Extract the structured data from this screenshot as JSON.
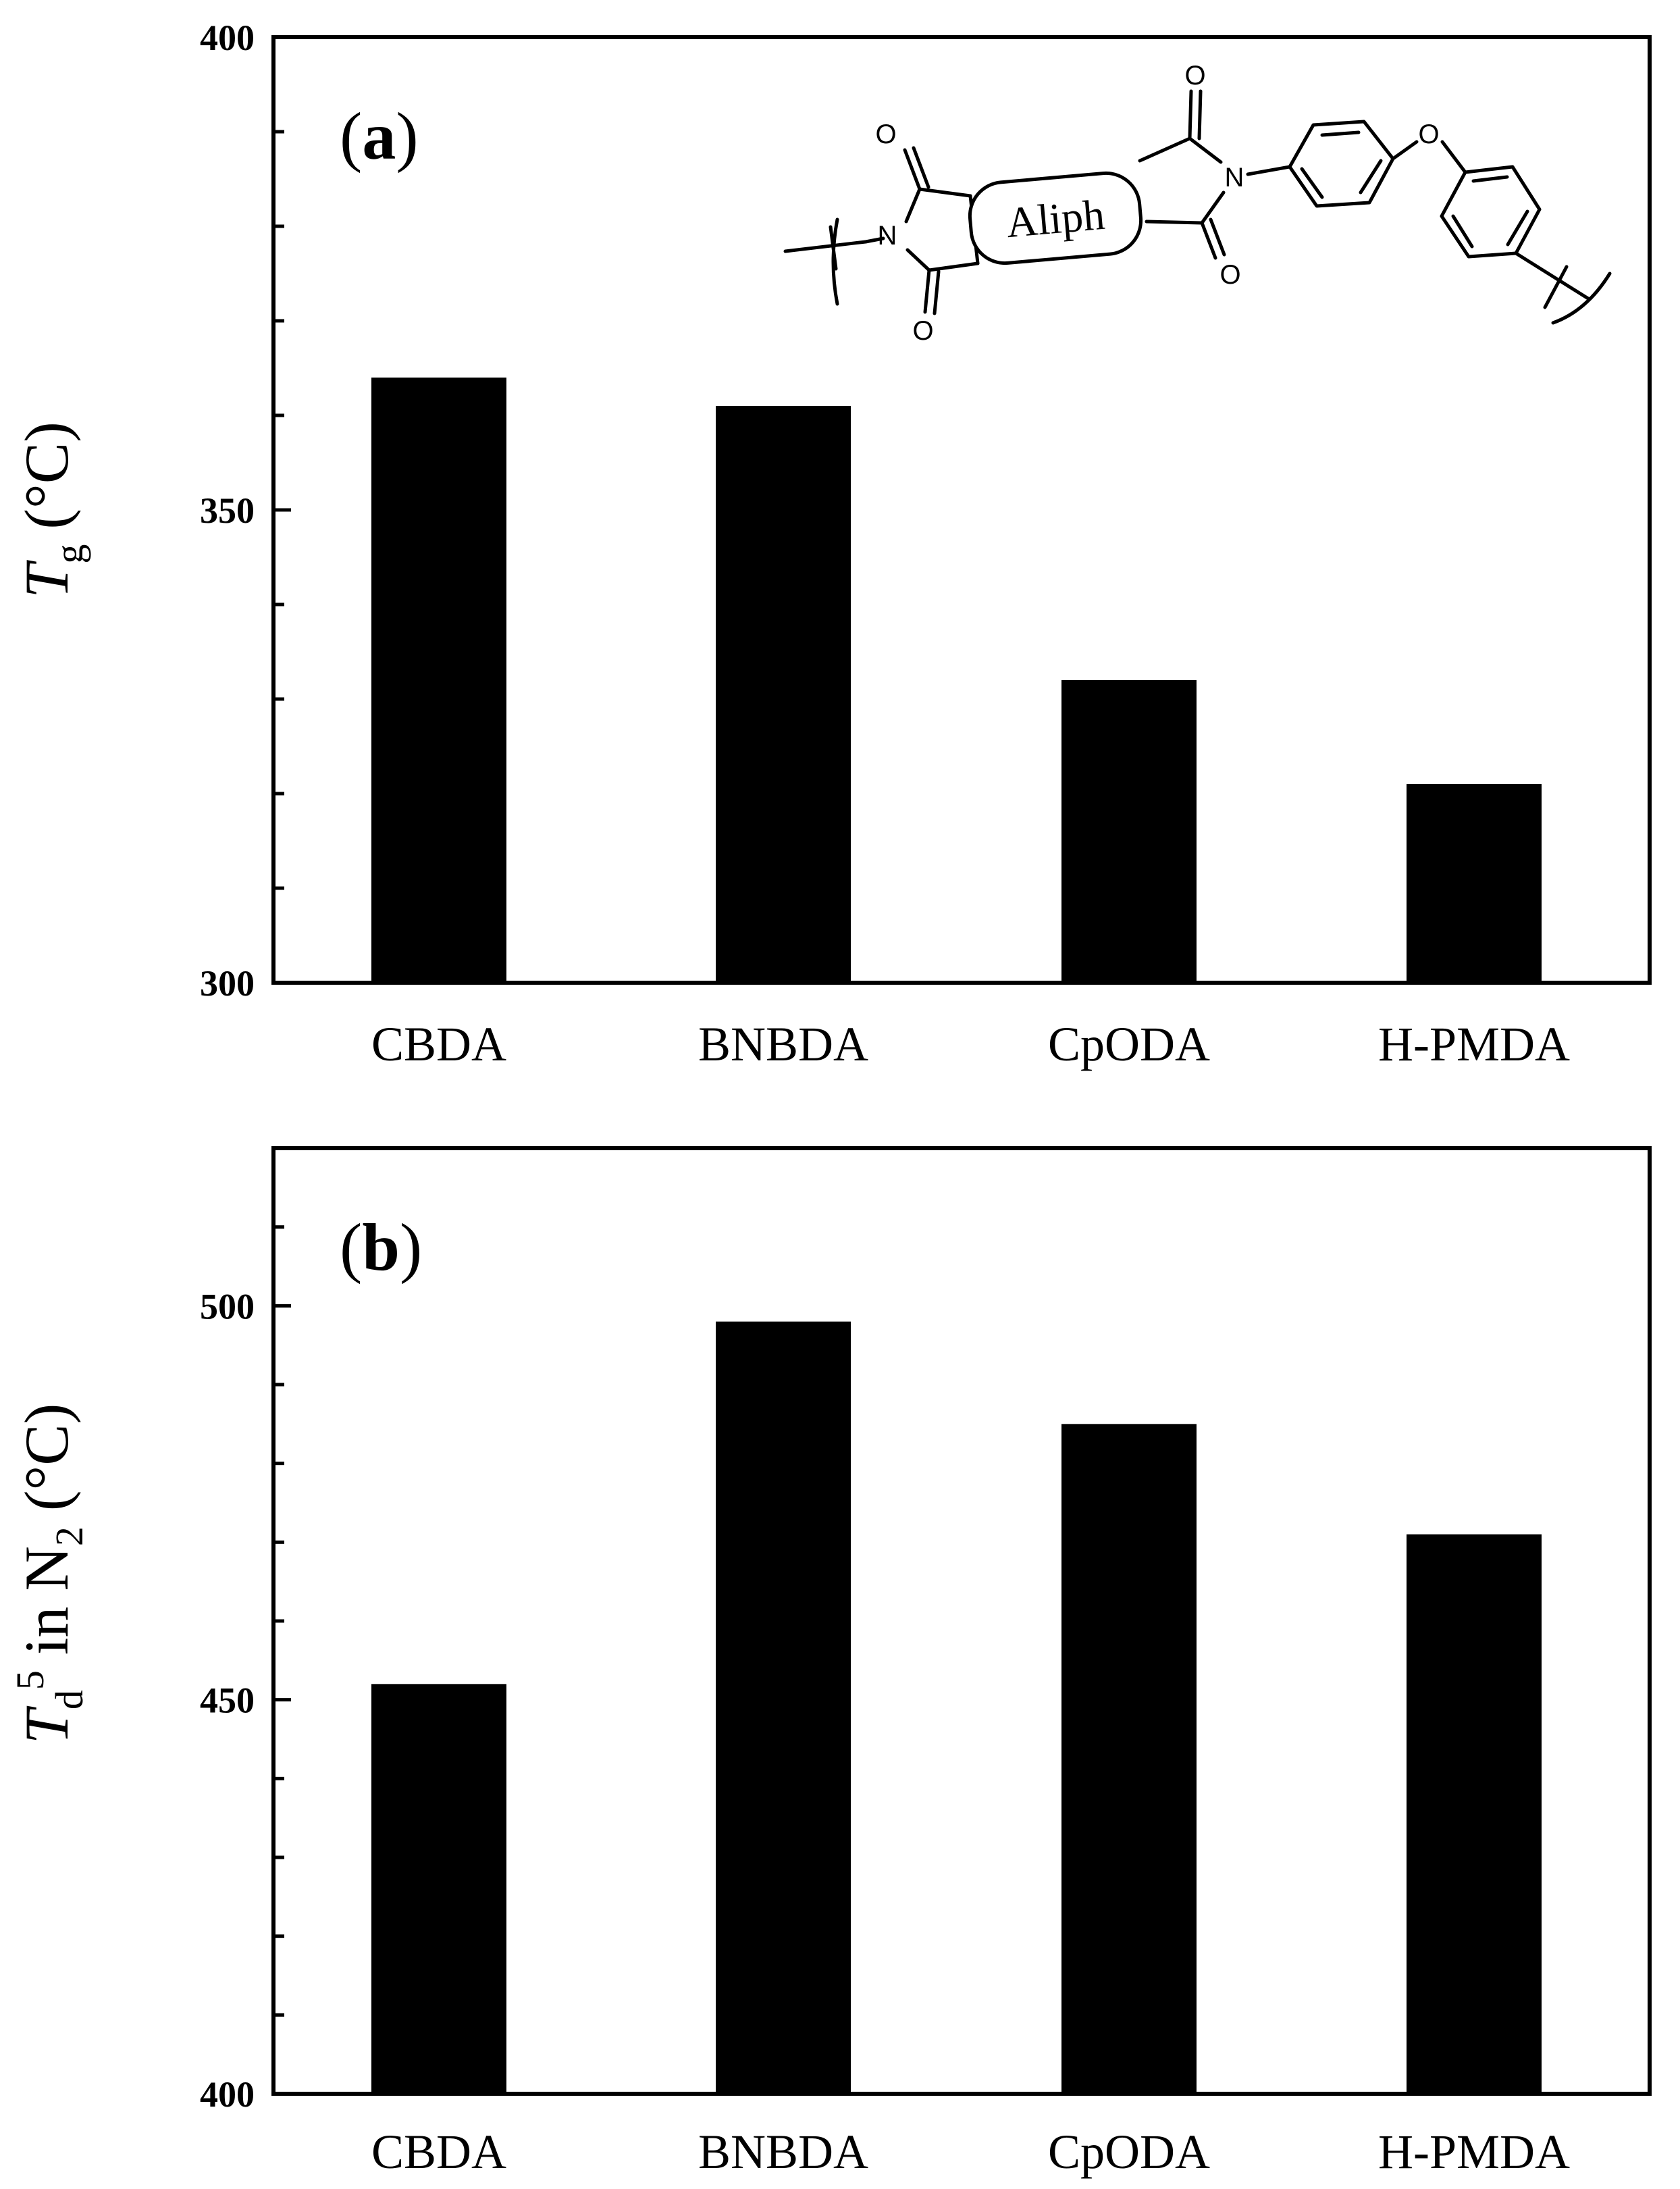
{
  "chart_data": [
    {
      "type": "bar",
      "panel_label": "a",
      "title": "",
      "categories": [
        "CBDA",
        "BNBDA",
        "CpODA",
        "H-PMDA"
      ],
      "values": [
        364,
        361,
        332,
        321
      ],
      "ylabel": {
        "symbol": "T",
        "subscript": "g",
        "unit": "(°C)"
      },
      "ylim": [
        300,
        400
      ],
      "major_ticks": [
        300,
        350,
        400
      ],
      "minor_step": 10,
      "grid": false,
      "bar_color": "#000000",
      "inset_structure": {
        "type": "polyimide repeat unit",
        "box_label": "Aliph",
        "atoms": {
          "carbonyl_oxygen": "O",
          "imide_nitrogen": "N",
          "ether_oxygen": "O"
        }
      }
    },
    {
      "type": "bar",
      "panel_label": "b",
      "title": "",
      "categories": [
        "CBDA",
        "BNBDA",
        "CpODA",
        "H-PMDA"
      ],
      "values": [
        452,
        498,
        485,
        471
      ],
      "ylabel": {
        "symbol": "T",
        "subscript": "d",
        "superscript": "5",
        "text": " in N",
        "text_subscript": "2",
        "unit": " (°C)"
      },
      "ylim": [
        400,
        520
      ],
      "major_ticks": [
        400,
        450,
        500
      ],
      "minor_step": 10,
      "grid": false,
      "bar_color": "#000000"
    }
  ]
}
